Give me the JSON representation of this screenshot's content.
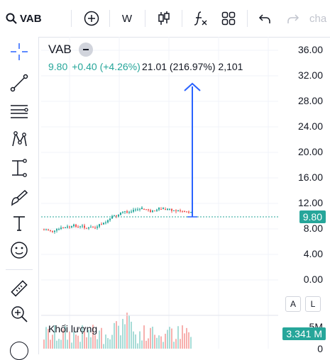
{
  "toolbar": {
    "symbol": "VAB",
    "interval": "W",
    "partial_label": "cha"
  },
  "legend": {
    "symbol": "VAB",
    "price": "9.80",
    "change": "+0.40 (+4.26%)",
    "measure": "21.01 (216.97%) 2,101"
  },
  "axis": {
    "ticks": [
      "36.00",
      "32.00",
      "28.00",
      "24.00",
      "20.00",
      "16.00",
      "12.00",
      "8.00",
      "4.00",
      "0.00"
    ],
    "price_badge": "9.80",
    "volume_tick_top": "5M",
    "volume_badge": "3.341 M",
    "volume_tick_bottom": "0",
    "auto_label": "A",
    "log_label": "L"
  },
  "volume": {
    "label": "Khối lượng"
  },
  "colors": {
    "up": "#26a69a",
    "down": "#ef5350",
    "accent": "#2962ff",
    "price_line": "#26a69a"
  },
  "icons": {
    "toolbar": [
      "search-icon",
      "add-symbol-icon",
      "candles-icon",
      "indicators-icon",
      "templates-icon",
      "undo-icon",
      "redo-icon"
    ],
    "sidebar": [
      "crosshair-icon",
      "trend-line-icon",
      "fib-icon",
      "pattern-icon",
      "projection-icon",
      "brush-icon",
      "text-icon",
      "emoji-icon",
      "ruler-icon",
      "zoom-icon"
    ]
  }
}
